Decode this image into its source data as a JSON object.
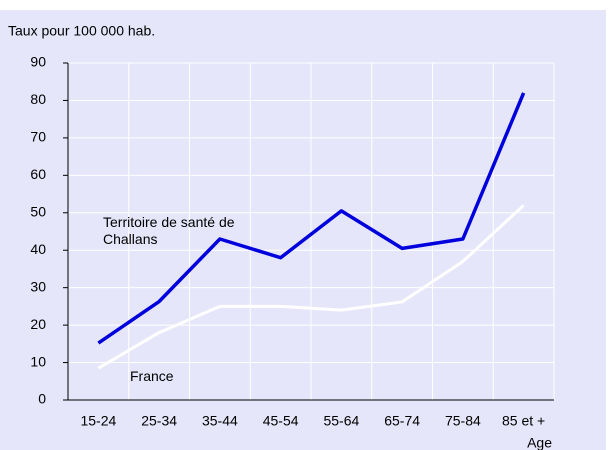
{
  "chart_data": {
    "type": "line",
    "y_label": "Taux pour 100 000 hab.",
    "x_label": "Age",
    "categories": [
      "15-24",
      "25-34",
      "35-44",
      "45-54",
      "55-64",
      "65-74",
      "75-84",
      "85 et +"
    ],
    "series": [
      {
        "name": "Territoire de santé de Challans",
        "color": "#0000dd",
        "values": [
          15.2,
          26.3,
          43,
          38,
          50.5,
          40.5,
          43,
          82
        ]
      },
      {
        "name": "France",
        "color": "#ffffff",
        "values": [
          8.5,
          18,
          25,
          25,
          24,
          26.2,
          37,
          52
        ]
      }
    ],
    "ylim": [
      0,
      90
    ],
    "yticks": [
      0,
      10,
      20,
      30,
      40,
      50,
      60,
      70,
      80,
      90
    ],
    "grid": true
  }
}
